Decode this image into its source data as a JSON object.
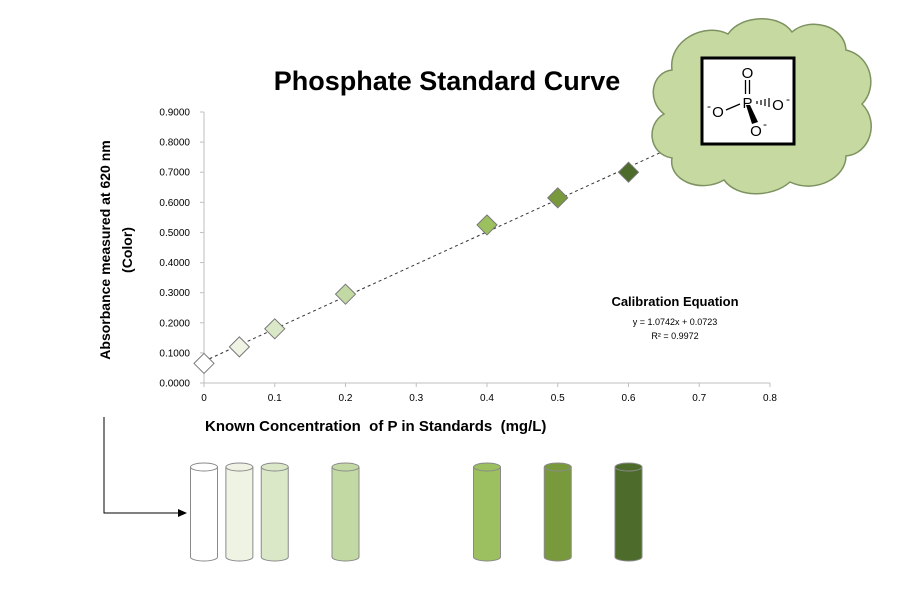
{
  "chart_data": {
    "type": "scatter",
    "title": "Phosphate Standard Curve",
    "xlabel": "Known Concentration  of P in Standards  (mg/L)",
    "ylabel_lines": [
      "Absorbance  measured  at 620 nm",
      "(Color)"
    ],
    "xlim": [
      0,
      0.8
    ],
    "ylim": [
      0,
      0.9
    ],
    "x_ticks": [
      "0",
      "0.1",
      "0.2",
      "0.3",
      "0.4",
      "0.5",
      "0.6",
      "0.7",
      "0.8"
    ],
    "y_ticks": [
      "0.0000",
      "0.1000",
      "0.2000",
      "0.3000",
      "0.4000",
      "0.5000",
      "0.6000",
      "0.7000",
      "0.8000",
      "0.9000"
    ],
    "grid": false,
    "points": [
      {
        "x": 0,
        "y": 0.065,
        "color": "#ffffff"
      },
      {
        "x": 0.05,
        "y": 0.12,
        "color": "#eef3e4"
      },
      {
        "x": 0.1,
        "y": 0.18,
        "color": "#dbe8c8"
      },
      {
        "x": 0.2,
        "y": 0.295,
        "color": "#c3d9a3"
      },
      {
        "x": 0.4,
        "y": 0.525,
        "color": "#9cbf5f"
      },
      {
        "x": 0.5,
        "y": 0.615,
        "color": "#79993d"
      },
      {
        "x": 0.6,
        "y": 0.7,
        "color": "#4d6b2a"
      }
    ],
    "trendline": {
      "slope": 1.0742,
      "intercept": 0.0723,
      "x_range": [
        0,
        0.66
      ],
      "style": "dashed"
    },
    "annotation": {
      "title": "Calibration Equation",
      "equation": "y = 1.0742x + 0.0723",
      "r_squared": "R² = 0.9972"
    }
  },
  "molecule": {
    "atom_p": "P",
    "atom_o_top": "O",
    "atom_o_left": "O",
    "atom_o_right": "O",
    "atom_o_bottom": "O",
    "charge": "-"
  },
  "tubes": [
    {
      "x": 0,
      "color": "#ffffff"
    },
    {
      "x": 0.05,
      "color": "#eef3e4"
    },
    {
      "x": 0.1,
      "color": "#dbe8c8"
    },
    {
      "x": 0.2,
      "color": "#c3d9a3"
    },
    {
      "x": 0.4,
      "color": "#9cbf5f"
    },
    {
      "x": 0.5,
      "color": "#79993d"
    },
    {
      "x": 0.6,
      "color": "#4d6b2a"
    }
  ],
  "colors": {
    "cloud_fill": "#c5d9a0",
    "cloud_stroke": "#7d9260",
    "axis": "#bfbfbf",
    "text": "#000000"
  }
}
